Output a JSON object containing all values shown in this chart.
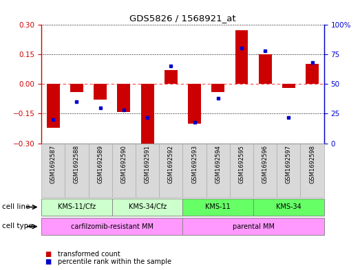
{
  "title": "GDS5826 / 1568921_at",
  "samples": [
    "GSM1692587",
    "GSM1692588",
    "GSM1692589",
    "GSM1692590",
    "GSM1692591",
    "GSM1692592",
    "GSM1692593",
    "GSM1692594",
    "GSM1692595",
    "GSM1692596",
    "GSM1692597",
    "GSM1692598"
  ],
  "bar_values": [
    -0.22,
    -0.04,
    -0.08,
    -0.14,
    -0.3,
    0.07,
    -0.2,
    -0.04,
    0.27,
    0.15,
    -0.02,
    0.1
  ],
  "dot_values": [
    20,
    35,
    30,
    28,
    22,
    65,
    18,
    38,
    80,
    78,
    22,
    68
  ],
  "bar_color": "#cc0000",
  "dot_color": "#0000cc",
  "ylim_left": [
    -0.3,
    0.3
  ],
  "ylim_right": [
    0,
    100
  ],
  "yticks_left": [
    -0.3,
    -0.15,
    0,
    0.15,
    0.3
  ],
  "yticks_right": [
    0,
    25,
    50,
    75,
    100
  ],
  "cell_line_groups": [
    {
      "label": "KMS-11/Cfz",
      "start": 0,
      "end": 3,
      "color": "#ccffcc"
    },
    {
      "label": "KMS-34/Cfz",
      "start": 3,
      "end": 6,
      "color": "#ccffcc"
    },
    {
      "label": "KMS-11",
      "start": 6,
      "end": 9,
      "color": "#66ff66"
    },
    {
      "label": "KMS-34",
      "start": 9,
      "end": 12,
      "color": "#66ff66"
    }
  ],
  "cell_type_groups": [
    {
      "label": "carfilzomib-resistant MM",
      "start": 0,
      "end": 6,
      "color": "#ff99ff"
    },
    {
      "label": "parental MM",
      "start": 6,
      "end": 12,
      "color": "#ff99ff"
    }
  ],
  "legend_bar_label": "transformed count",
  "legend_dot_label": "percentile rank within the sample",
  "cell_line_row_label": "cell line",
  "cell_type_row_label": "cell type",
  "background_color": "#ffffff",
  "zero_line_color": "#ff4444",
  "hline_color": "#000000",
  "sample_box_color": "#d9d9d9",
  "sample_box_edge": "#aaaaaa"
}
